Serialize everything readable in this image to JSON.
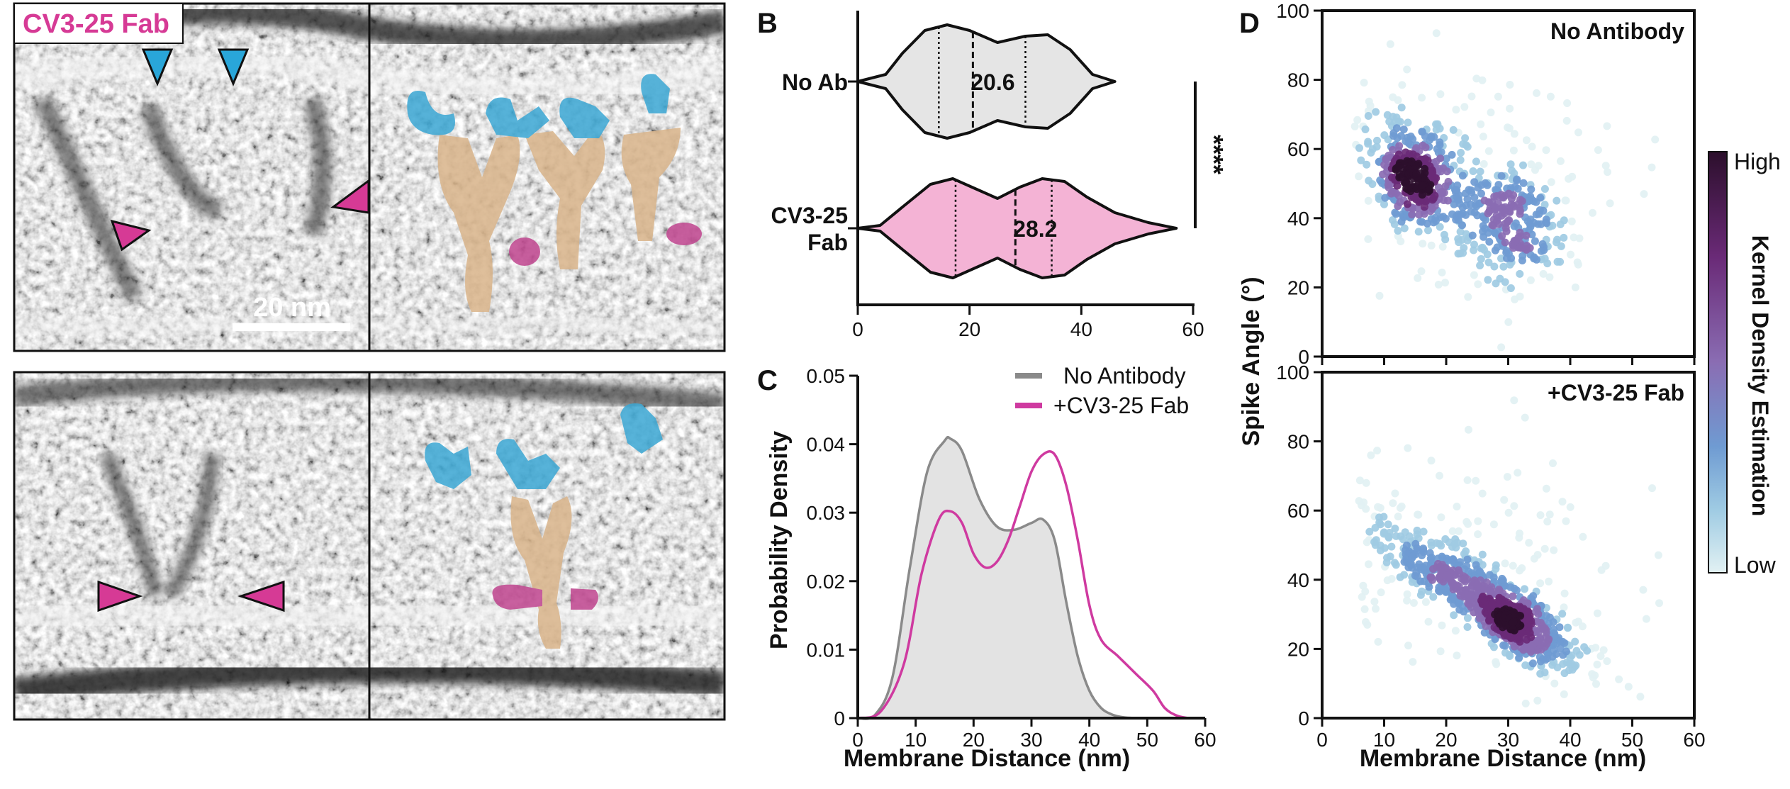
{
  "panel_a": {
    "title": "CV3-25 Fab",
    "scale_bar_label": "20 nm",
    "colors": {
      "title": "#d63a95",
      "arrow_blue": "#29a6d9",
      "arrow_pink": "#d63a95",
      "fab": "#c0458f",
      "spike_head": "#3ba7d4",
      "stem": "#d9b48a"
    }
  },
  "panel_labels": {
    "b": "B",
    "c": "C",
    "d": "D"
  },
  "panel_b": {
    "significance": "****",
    "chart_data": {
      "type": "violin",
      "categories": [
        "No Ab",
        "CV3-25 Fab"
      ],
      "category_display": [
        [
          "No Ab"
        ],
        [
          "CV3-25",
          "Fab"
        ]
      ],
      "medians": [
        20.6,
        28.2
      ],
      "median_labels": [
        "20.6",
        "28.2"
      ],
      "quartiles": [
        [
          14.5,
          30.0
        ],
        [
          17.5,
          34.7
        ]
      ],
      "xlim": [
        0,
        60
      ],
      "xticks": [
        0,
        20,
        40,
        60
      ],
      "colors": [
        "#e5e5e5",
        "#f4b3d5"
      ],
      "grid": false
    }
  },
  "panel_c": {
    "chart_data": {
      "type": "line",
      "xlabel": "Membrane Distance (nm)",
      "ylabel": "Probability Density",
      "xlim": [
        0,
        60
      ],
      "ylim": [
        0,
        0.05
      ],
      "xticks": [
        0,
        10,
        20,
        30,
        40,
        50,
        60
      ],
      "yticks": [
        "0",
        "0.01",
        "0.02",
        "0.03",
        "0.04",
        "0.05"
      ],
      "legend_position": "top-right",
      "series": [
        {
          "name": "No Antibody",
          "color": "#8a8a8a",
          "fill": "#e3e3e3",
          "x": [
            0,
            3,
            6,
            9,
            12,
            15,
            16,
            18,
            21,
            24,
            27,
            30,
            32,
            34,
            36,
            38,
            40,
            42,
            44,
            46,
            48
          ],
          "y": [
            0,
            0.0005,
            0.006,
            0.022,
            0.036,
            0.0405,
            0.0408,
            0.039,
            0.032,
            0.028,
            0.0275,
            0.0285,
            0.029,
            0.026,
            0.017,
            0.009,
            0.004,
            0.0015,
            0.0005,
            0.0001,
            0
          ]
        },
        {
          "name": "+CV3-25 Fab",
          "color": "#cf3aa0",
          "x": [
            0,
            4,
            8,
            11,
            14,
            16,
            18,
            20,
            22,
            24,
            26,
            28,
            30,
            32,
            34,
            36,
            38,
            40,
            42,
            45,
            48,
            51,
            53,
            55,
            57
          ],
          "y": [
            0,
            0.001,
            0.008,
            0.021,
            0.029,
            0.0302,
            0.0285,
            0.024,
            0.022,
            0.0228,
            0.026,
            0.031,
            0.036,
            0.0385,
            0.0385,
            0.034,
            0.026,
            0.0165,
            0.0115,
            0.009,
            0.0065,
            0.004,
            0.0015,
            0.0004,
            0
          ]
        }
      ]
    }
  },
  "panel_d": {
    "ylabel": "Spike Angle (°)",
    "xlabel": "Membrane Distance (nm)",
    "colorbar": {
      "title": "Kernel Density Estimation",
      "high": "High",
      "low": "Low",
      "colors": [
        "#2c0f2c",
        "#6a2a77",
        "#8a6db3",
        "#6f9bd2",
        "#9fcbe3",
        "#e2f1f3"
      ]
    },
    "chart_data": [
      {
        "type": "scatter",
        "title": "No Antibody",
        "xlim": [
          0,
          60
        ],
        "ylim": [
          0,
          100
        ],
        "xticks": [
          0,
          10,
          20,
          30,
          40,
          50,
          60
        ],
        "yticks": [
          0,
          20,
          40,
          60,
          80,
          100
        ],
        "clusters": [
          {
            "center": [
              15,
              52
            ],
            "spread": [
              4,
              8
            ],
            "count": 360,
            "corr": -0.3
          },
          {
            "center": [
              30,
              38
            ],
            "spread": [
              5,
              9
            ],
            "count": 260,
            "corr": -0.2
          },
          {
            "center": [
              22,
              55
            ],
            "spread": [
              12,
              16
            ],
            "count": 140,
            "corr": 0
          }
        ]
      },
      {
        "type": "scatter",
        "title": "+CV3-25 Fab",
        "xlim": [
          0,
          60
        ],
        "ylim": [
          0,
          100
        ],
        "xticks": [
          0,
          10,
          20,
          30,
          40,
          50,
          60
        ],
        "yticks": [
          0,
          20,
          40,
          60,
          80,
          100
        ],
        "clusters": [
          {
            "center": [
              25,
              36
            ],
            "spread": [
              9,
              11
            ],
            "count": 520,
            "corr": -0.88
          },
          {
            "center": [
              31,
              27
            ],
            "spread": [
              3.5,
              6
            ],
            "count": 240,
            "corr": -0.6
          },
          {
            "center": [
              28,
              45
            ],
            "spread": [
              14,
              18
            ],
            "count": 130,
            "corr": -0.2
          }
        ]
      }
    ]
  }
}
